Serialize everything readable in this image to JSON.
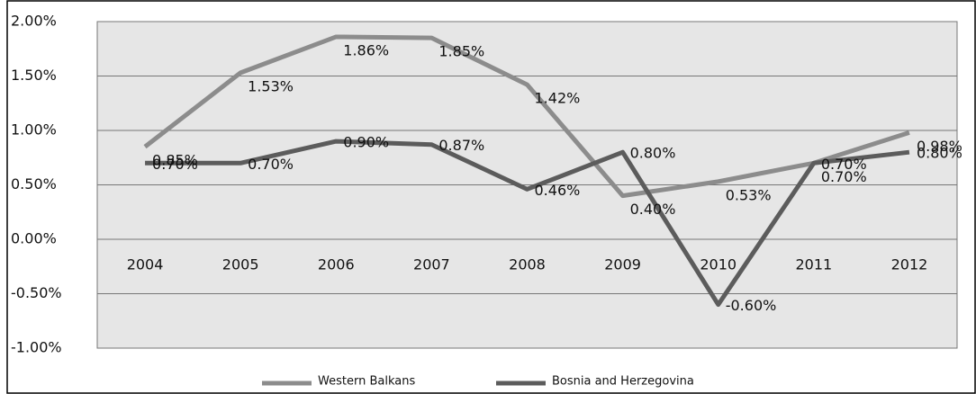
{
  "chart_data": {
    "type": "line",
    "categories": [
      "2004",
      "2005",
      "2006",
      "2007",
      "2008",
      "2009",
      "2010",
      "2011",
      "2012"
    ],
    "series": [
      {
        "name": "Western Balkans",
        "color": "#8c8c8c",
        "values": [
          0.85,
          1.53,
          1.86,
          1.85,
          1.42,
          0.4,
          0.53,
          0.7,
          0.98
        ],
        "value_labels": [
          "0.85%",
          "1.53%",
          "1.86%",
          "1.85%",
          "1.42%",
          "0.40%",
          "0.53%",
          "0.70%",
          "0.98%"
        ]
      },
      {
        "name": "Bosnia and Herzegovina",
        "color": "#5c5c5c",
        "values": [
          0.7,
          0.7,
          0.9,
          0.87,
          0.46,
          0.8,
          -0.6,
          0.7,
          0.8
        ],
        "value_labels": [
          "0.70%",
          "0.70%",
          "0.90%",
          "0.87%",
          "0.46%",
          "0.80%",
          "-0.60%",
          "0.70%",
          "0.80%"
        ]
      }
    ],
    "ylim": [
      -1.0,
      2.0
    ],
    "yticks": [
      {
        "value": -1.0,
        "label": "-1.00%"
      },
      {
        "value": -0.5,
        "label": "-0.50%"
      },
      {
        "value": 0,
        "label": "0.00%"
      },
      {
        "value": 0.5,
        "label": "0.50%"
      },
      {
        "value": 1.0,
        "label": "1.00%"
      },
      {
        "value": 1.5,
        "label": "1.50%"
      },
      {
        "value": 2.0,
        "label": "2.00%"
      }
    ],
    "grid": true,
    "legend": "bottom"
  }
}
